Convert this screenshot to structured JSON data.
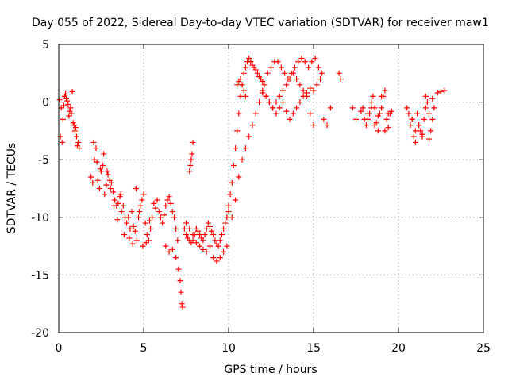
{
  "chart_data": {
    "type": "scatter",
    "title": "Day 055 of 2022, Sidereal Day-to-day VTEC variation (SDTVAR) for receiver maw1",
    "xlabel": "GPS time / hours",
    "ylabel": "SDTVAR / TECUs",
    "xlim": [
      0,
      25
    ],
    "ylim": [
      -20,
      5
    ],
    "x_ticks": [
      0,
      5,
      10,
      15,
      20,
      25
    ],
    "y_ticks": [
      -20,
      -15,
      -10,
      -5,
      0,
      5
    ],
    "x_tick_labels": [
      "0",
      "5",
      "10",
      "15",
      "20",
      "25"
    ],
    "y_tick_labels": [
      "-20",
      "-15",
      "-10",
      "-5",
      "0",
      "5"
    ],
    "grid": true,
    "marker": "+",
    "series": [
      {
        "name": "maw1",
        "color": "#ff0000",
        "x": [
          0.05,
          0.15,
          0.25,
          0.35,
          0.45,
          0.55,
          0.65,
          0.75,
          0.85,
          0.95,
          1.05,
          1.15,
          0.1,
          0.2,
          0.3,
          0.4,
          0.5,
          0.6,
          0.7,
          0.8,
          0.9,
          1.0,
          1.1,
          1.2,
          1.9,
          2.0,
          2.1,
          2.2,
          2.3,
          2.4,
          2.5,
          2.6,
          2.7,
          2.8,
          2.9,
          3.0,
          3.1,
          3.2,
          3.3,
          3.4,
          3.5,
          3.6,
          3.7,
          3.8,
          3.9,
          4.0,
          2.05,
          2.25,
          2.45,
          2.65,
          2.85,
          3.05,
          3.25,
          3.45,
          3.65,
          3.85,
          4.1,
          4.2,
          4.3,
          4.4,
          4.5,
          4.6,
          4.7,
          4.8,
          4.9,
          5.0,
          5.1,
          5.2,
          5.3,
          5.4,
          5.5,
          4.15,
          4.35,
          4.55,
          4.75,
          4.95,
          5.15,
          5.35,
          5.6,
          5.7,
          5.8,
          5.9,
          6.0,
          6.1,
          6.2,
          6.3,
          6.4,
          6.5,
          6.6,
          6.7,
          6.8,
          6.9,
          7.0,
          6.3,
          6.5,
          6.7,
          6.9,
          7.05,
          7.15,
          7.2,
          7.25,
          7.3,
          7.4,
          7.5,
          7.6,
          7.7,
          7.8,
          7.9,
          8.0,
          8.1,
          8.2,
          8.3,
          8.4,
          8.5,
          8.6,
          8.7,
          8.8,
          8.9,
          9.0,
          9.1,
          9.2,
          9.3,
          9.4,
          9.5,
          9.6,
          9.7,
          9.8,
          9.9,
          10.0,
          7.5,
          7.7,
          7.9,
          8.1,
          8.3,
          8.5,
          8.7,
          8.9,
          9.1,
          9.3,
          9.5,
          9.7,
          9.9,
          7.7,
          7.75,
          7.8,
          7.85,
          7.9,
          10.0,
          10.1,
          10.2,
          10.3,
          10.4,
          10.5,
          10.6,
          10.7,
          10.8,
          10.9,
          11.0,
          11.1,
          11.2,
          11.3,
          11.4,
          11.5,
          11.6,
          11.7,
          11.8,
          11.9,
          12.0,
          10.2,
          10.4,
          10.6,
          10.8,
          11.0,
          11.2,
          11.4,
          11.6,
          11.8,
          12.0,
          10.5,
          10.6,
          10.7,
          10.8,
          10.9,
          11.0,
          12.1,
          12.3,
          12.5,
          12.7,
          12.9,
          13.1,
          13.3,
          13.5,
          13.7,
          13.9,
          14.1,
          14.3,
          14.5,
          14.7,
          14.9,
          15.1,
          15.3,
          15.5,
          12.2,
          12.4,
          12.6,
          12.8,
          13.0,
          13.2,
          13.4,
          13.6,
          13.8,
          14.0,
          14.2,
          14.4,
          14.6,
          14.8,
          15.0,
          15.2,
          15.4,
          12.0,
          12.2,
          12.4,
          12.6,
          12.8,
          13.0,
          13.2,
          13.4,
          13.6,
          13.8,
          14.0,
          14.2,
          14.4,
          14.6,
          14.8,
          15.0,
          15.6,
          15.8,
          16.0,
          16.5,
          16.6,
          17.3,
          17.5,
          17.8,
          17.9,
          18.0,
          18.1,
          18.2,
          18.3,
          18.4,
          18.5,
          18.6,
          18.7,
          18.8,
          18.9,
          19.0,
          19.1,
          19.2,
          19.3,
          19.4,
          19.5,
          19.6,
          18.2,
          18.4,
          18.6,
          18.8,
          19.0,
          19.2,
          19.4,
          20.5,
          20.6,
          20.7,
          20.8,
          20.9,
          21.0,
          21.1,
          21.2,
          21.3,
          21.4,
          21.5,
          21.6,
          21.7,
          21.8,
          21.9,
          22.0,
          22.1,
          20.8,
          21.0,
          21.2,
          21.4,
          21.6,
          21.8,
          22.0,
          22.3,
          22.5,
          22.7
        ],
        "y": [
          0.2,
          -0.5,
          -1.5,
          0.5,
          0.3,
          -0.2,
          -0.8,
          -1.0,
          -1.8,
          -2.5,
          -3.0,
          -3.5,
          -3.0,
          -3.5,
          -0.3,
          0.7,
          0.1,
          -1.2,
          -0.5,
          0.9,
          -2.0,
          -2.2,
          -3.8,
          -4.0,
          -6.5,
          -7.0,
          -5.0,
          -4.0,
          -6.8,
          -7.5,
          -6.0,
          -5.5,
          -8.0,
          -7.2,
          -6.3,
          -6.8,
          -7.0,
          -7.8,
          -8.5,
          -9.0,
          -8.8,
          -8.2,
          -9.5,
          -9.0,
          -10.0,
          -10.5,
          -3.5,
          -5.2,
          -5.8,
          -4.5,
          -6.0,
          -7.5,
          -9.0,
          -10.2,
          -8.0,
          -11.5,
          -10.0,
          -11.0,
          -9.5,
          -10.8,
          -11.2,
          -12.0,
          -10.0,
          -9.0,
          -8.5,
          -8.0,
          -10.5,
          -11.5,
          -12.0,
          -11.0,
          -10.0,
          -11.8,
          -12.3,
          -7.5,
          -9.5,
          -12.5,
          -12.2,
          -10.3,
          -8.8,
          -9.2,
          -8.5,
          -9.5,
          -10.0,
          -10.5,
          -9.8,
          -9.0,
          -8.5,
          -8.2,
          -8.8,
          -9.5,
          -10.0,
          -11.0,
          -12.0,
          -12.5,
          -13.0,
          -12.8,
          -13.5,
          -14.5,
          -15.5,
          -16.5,
          -17.5,
          -17.8,
          -11.0,
          -11.5,
          -11.8,
          -12.0,
          -12.2,
          -12.0,
          -11.5,
          -11.0,
          -11.2,
          -11.5,
          -11.8,
          -12.0,
          -11.5,
          -11.0,
          -10.5,
          -10.8,
          -11.2,
          -11.5,
          -12.0,
          -12.3,
          -12.5,
          -12.0,
          -11.5,
          -11.0,
          -10.5,
          -10.0,
          -9.5,
          -10.5,
          -11.0,
          -11.5,
          -12.2,
          -12.5,
          -12.8,
          -13.0,
          -12.5,
          -13.5,
          -13.8,
          -13.5,
          -13.0,
          -12.5,
          -6.0,
          -5.5,
          -5.0,
          -4.5,
          -3.5,
          -9.0,
          -8.0,
          -7.0,
          -5.5,
          -4.0,
          -2.5,
          -1.0,
          0.5,
          1.5,
          2.5,
          3.0,
          3.5,
          3.8,
          3.5,
          3.2,
          3.0,
          2.8,
          2.5,
          2.2,
          2.0,
          1.8,
          -10.0,
          -8.5,
          -6.5,
          -5.0,
          -4.0,
          -3.0,
          -2.0,
          -1.0,
          0.0,
          0.8,
          1.5,
          1.8,
          2.0,
          1.5,
          1.0,
          0.5,
          1.5,
          2.5,
          3.0,
          3.5,
          3.5,
          3.0,
          2.5,
          2.0,
          2.5,
          3.0,
          3.5,
          3.8,
          3.5,
          3.0,
          3.5,
          3.8,
          3.0,
          2.5,
          0.5,
          0.0,
          -0.5,
          -1.0,
          -0.5,
          0.0,
          -0.8,
          -1.5,
          -1.0,
          -0.5,
          0.0,
          0.5,
          0.8,
          1.2,
          1.0,
          1.5,
          2.0,
          1.0,
          0.5,
          0.0,
          -0.5,
          0.0,
          0.5,
          1.0,
          1.5,
          2.0,
          2.5,
          2.0,
          1.5,
          1.0,
          0.5,
          -1.0,
          -2.0,
          -1.5,
          -2.0,
          -0.5,
          2.5,
          2.0,
          -0.5,
          -1.5,
          -0.8,
          -0.5,
          -1.5,
          -2.0,
          -1.5,
          -1.0,
          0.0,
          0.5,
          -0.5,
          -1.8,
          -2.5,
          -1.0,
          -0.5,
          0.5,
          1.0,
          -1.5,
          -2.2,
          -1.0,
          -0.8,
          -1.0,
          -0.5,
          -2.0,
          -1.2,
          0.5,
          -2.5,
          -1.0,
          -0.5,
          -1.0,
          -2.0,
          -1.5,
          -3.0,
          -2.5,
          -1.0,
          -2.0,
          -2.5,
          -3.0,
          -1.5,
          -0.5,
          0.0,
          -1.0,
          -2.5,
          -1.5,
          -0.5,
          -1.5,
          -3.5,
          -2.0,
          -2.8,
          0.5,
          -3.2,
          0.3,
          0.8,
          0.9,
          1.0
        ]
      }
    ]
  }
}
